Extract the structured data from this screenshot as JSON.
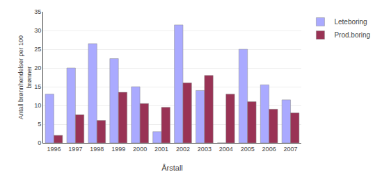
{
  "chart_data": {
    "type": "bar",
    "xlabel": "Årstall",
    "ylabel": "Antall brønnhendelser per 100\nbrønner",
    "categories": [
      "1996",
      "1997",
      "1998",
      "1999",
      "2000",
      "2001",
      "2002",
      "2003",
      "2004",
      "2005",
      "2006",
      "2007"
    ],
    "series": [
      {
        "name": "Leteboring",
        "color": "#aaaaff",
        "values": [
          13,
          20,
          26.5,
          22.5,
          15,
          3,
          31.5,
          14,
          0,
          25,
          15.5,
          11.5
        ]
      },
      {
        "name": "Prod.boring",
        "color": "#993355",
        "values": [
          2,
          7.5,
          6,
          13.5,
          10.5,
          9.5,
          16,
          18,
          13,
          11,
          9,
          8
        ]
      }
    ],
    "ylim": [
      0,
      35
    ],
    "yticks": [
      0,
      5,
      10,
      15,
      20,
      25,
      30,
      35
    ],
    "grid": true,
    "legend": "upper right"
  }
}
